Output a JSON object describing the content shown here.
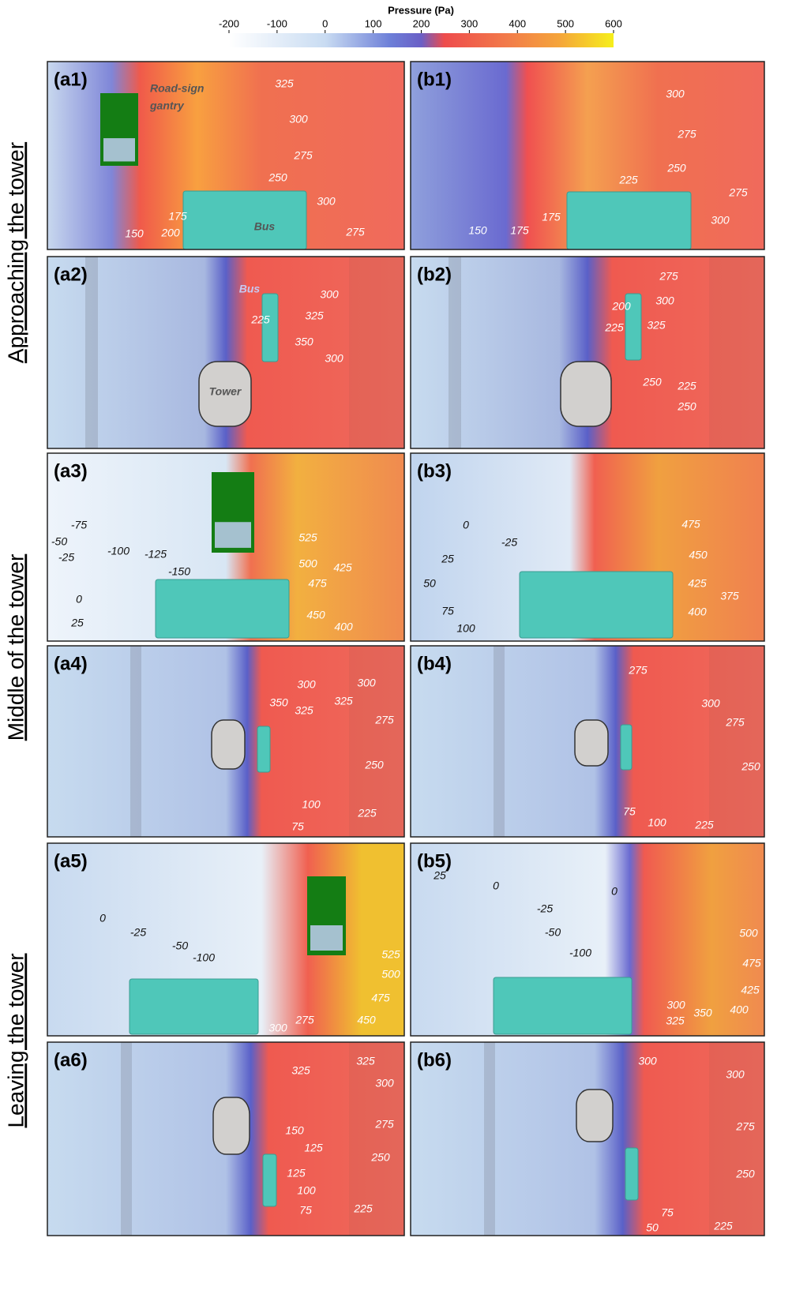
{
  "colorbar": {
    "title": "Pressure (Pa)",
    "lim": [
      -200,
      600
    ],
    "ticks": [
      -200,
      -100,
      0,
      100,
      200,
      300,
      400,
      500,
      600
    ]
  },
  "row_labels": [
    "Approaching the tower",
    "Middle of the tower",
    "Leaving the tower"
  ],
  "panels": [
    {
      "label": "(a1)",
      "texts": [
        "Road-sign",
        "gantry",
        "Bus",
        325,
        300,
        275,
        250,
        300,
        275,
        175,
        150,
        200
      ]
    },
    {
      "label": "(b1)",
      "texts": [
        300,
        275,
        250,
        225,
        275,
        300,
        175,
        150,
        175
      ]
    },
    {
      "label": "(a2)",
      "texts": [
        "Bus",
        "Tower",
        300,
        325,
        225,
        350,
        300
      ]
    },
    {
      "label": "(b2)",
      "texts": [
        275,
        300,
        200,
        325,
        225,
        250,
        225,
        250
      ]
    },
    {
      "label": "(a3)",
      "texts": [
        -75,
        -50,
        -25,
        -100,
        -125,
        -150,
        0,
        25,
        525,
        500,
        425,
        475,
        450,
        400
      ]
    },
    {
      "label": "(b3)",
      "texts": [
        0,
        -25,
        25,
        50,
        75,
        100,
        475,
        450,
        425,
        375,
        400
      ]
    },
    {
      "label": "(a4)",
      "texts": [
        300,
        300,
        350,
        325,
        325,
        275,
        250,
        225,
        100,
        75
      ]
    },
    {
      "label": "(b4)",
      "texts": [
        275,
        300,
        275,
        250,
        75,
        100,
        225
      ]
    },
    {
      "label": "(a5)",
      "texts": [
        0,
        -25,
        -50,
        -100,
        525,
        500,
        475,
        450,
        275,
        300
      ]
    },
    {
      "label": "(b5)",
      "texts": [
        25,
        0,
        0,
        -25,
        -50,
        -100,
        500,
        475,
        425,
        400,
        350,
        300,
        325
      ]
    },
    {
      "label": "(a6)",
      "texts": [
        325,
        325,
        300,
        275,
        250,
        225,
        150,
        125,
        125,
        100,
        75
      ]
    },
    {
      "label": "(b6)",
      "texts": [
        300,
        300,
        275,
        250,
        225,
        75,
        50
      ]
    }
  ]
}
